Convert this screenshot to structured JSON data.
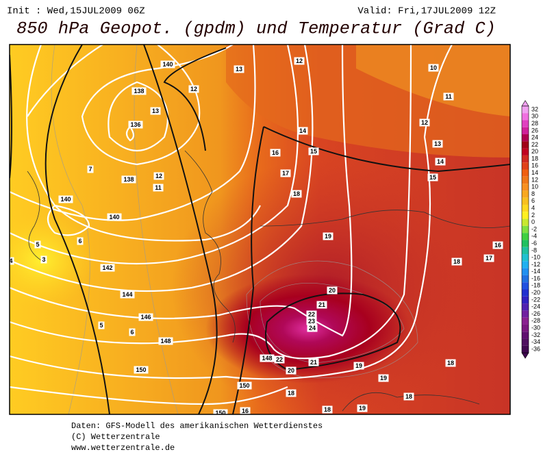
{
  "header": {
    "init": "Init : Wed,15JUL2009 06Z",
    "valid": "Valid: Fri,17JUL2009 12Z",
    "title": "850 hPa Geopot. (gpdm) und Temperatur (Grad C)"
  },
  "contour_labels": [
    "140",
    "12",
    "13",
    "12",
    "10",
    "11",
    "138",
    "13",
    "136",
    "14",
    "15",
    "12",
    "13",
    "14",
    "15",
    "7",
    "138",
    "12",
    "11",
    "16",
    "17",
    "18",
    "140",
    "140",
    "6",
    "5",
    "3",
    "4",
    "142",
    "19",
    "16",
    "18",
    "17",
    "144",
    "20",
    "21",
    "22",
    "23",
    "24",
    "146",
    "5",
    "148",
    "6",
    "148",
    "22",
    "21",
    "20",
    "19",
    "18",
    "150",
    "19",
    "150",
    "18",
    "18",
    "150",
    "16",
    "18",
    "19"
  ],
  "colorbar": {
    "labels": [
      32,
      30,
      28,
      26,
      24,
      22,
      20,
      18,
      16,
      14,
      12,
      10,
      8,
      6,
      4,
      2,
      0,
      -2,
      -4,
      -6,
      -8,
      -10,
      -12,
      -14,
      -16,
      -18,
      -20,
      -22,
      -24,
      -26,
      -28,
      -30,
      -32,
      -34,
      -36
    ]
  },
  "footer": [
    "Daten: GFS-Modell des amerikanischen Wetterdienstes",
    "(C) Wetterzentrale",
    "www.wetterzentrale.de"
  ]
}
